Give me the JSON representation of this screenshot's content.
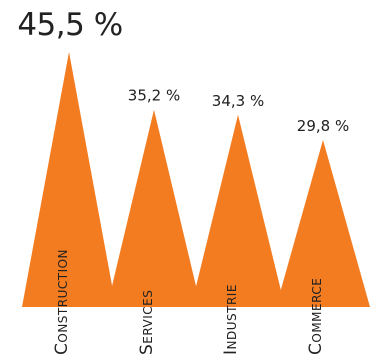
{
  "chart_data": {
    "type": "bar",
    "shape": "triangle",
    "categories": [
      "Construction",
      "Services",
      "Industrie",
      "Commerce"
    ],
    "values": [
      45.5,
      35.2,
      34.3,
      29.8
    ],
    "value_labels": [
      "45,5 %",
      "35,2 %",
      "34,3 %",
      "29,8 %"
    ],
    "ylim": [
      0,
      46
    ],
    "grid": false,
    "legend": "none",
    "colors": {
      "bar": "#F47C20",
      "text": "#222222"
    }
  }
}
